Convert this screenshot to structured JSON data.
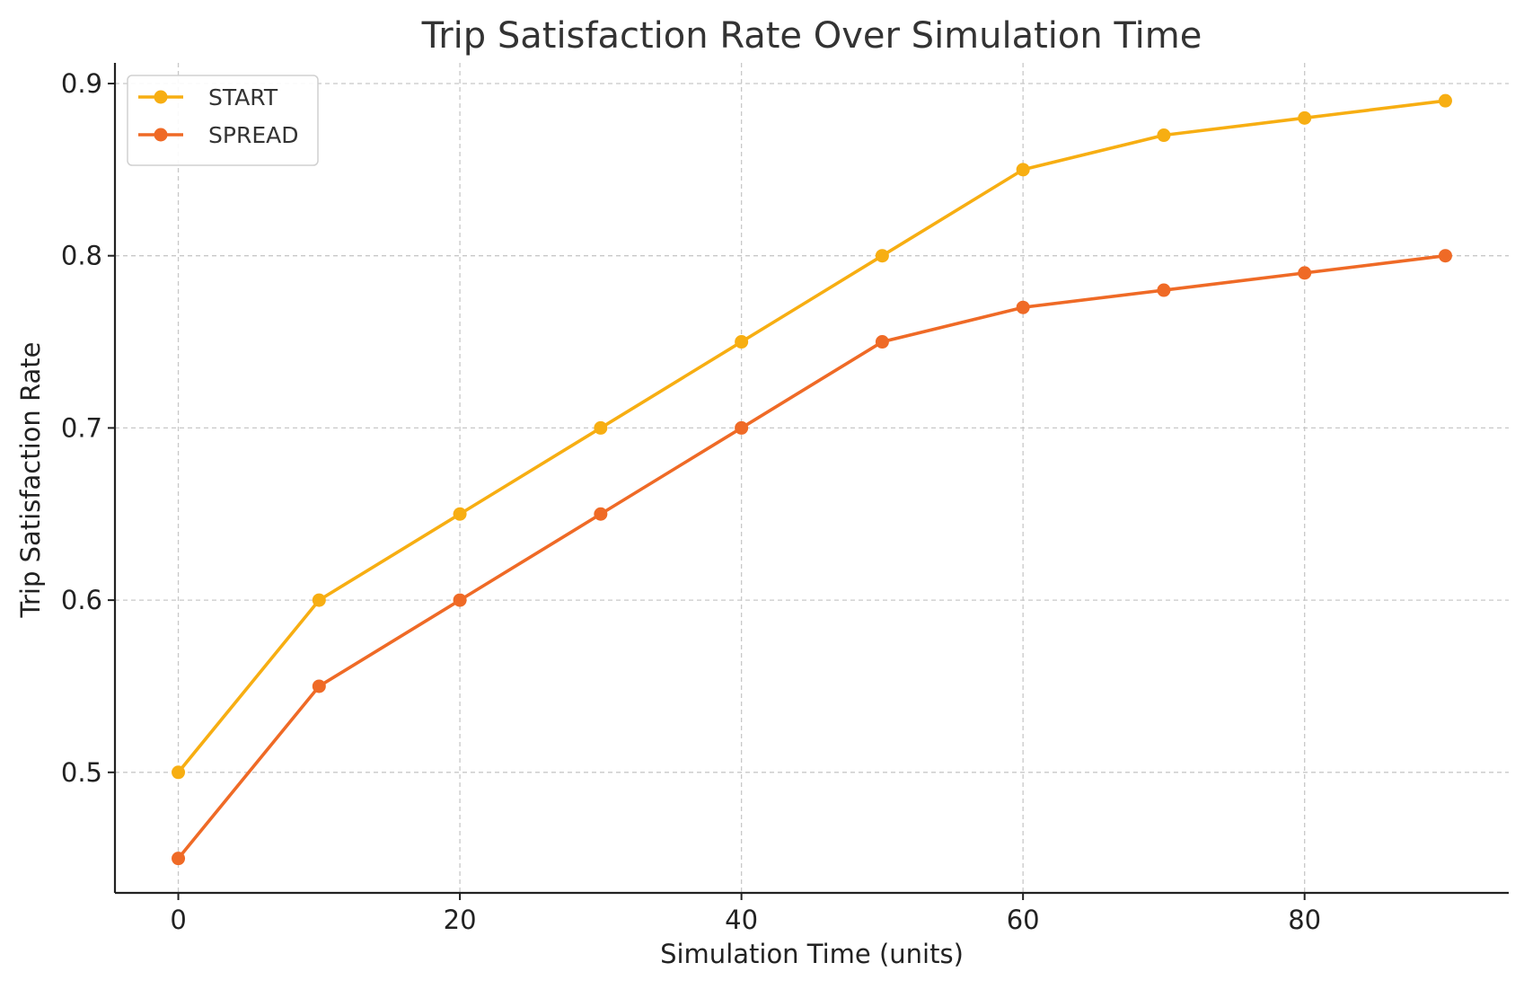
{
  "chart_data": {
    "type": "line",
    "title": "Trip Satisfaction Rate Over Simulation Time",
    "xlabel": "Simulation Time (units)",
    "ylabel": "Trip Satisfaction Rate",
    "x": [
      0,
      10,
      20,
      30,
      40,
      50,
      60,
      70,
      80,
      90
    ],
    "xlim": [
      -4.5,
      94.5
    ],
    "ylim": [
      0.43,
      0.912
    ],
    "xticks": [
      0,
      20,
      40,
      60,
      80
    ],
    "xtick_labels": [
      "0",
      "20",
      "40",
      "60",
      "80"
    ],
    "yticks": [
      0.5,
      0.6,
      0.7,
      0.8,
      0.9
    ],
    "ytick_labels": [
      "0.5",
      "0.6",
      "0.7",
      "0.8",
      "0.9"
    ],
    "grid": true,
    "legend_position": "top-left",
    "series": [
      {
        "name": "START",
        "color": "#f7ae12",
        "marker": "circle",
        "values": [
          0.5,
          0.6,
          0.65,
          0.7,
          0.75,
          0.8,
          0.85,
          0.87,
          0.88,
          0.89
        ]
      },
      {
        "name": "SPREAD",
        "color": "#ef6a26",
        "marker": "circle",
        "values": [
          0.45,
          0.55,
          0.6,
          0.65,
          0.7,
          0.75,
          0.77,
          0.78,
          0.79,
          0.8
        ]
      }
    ]
  }
}
